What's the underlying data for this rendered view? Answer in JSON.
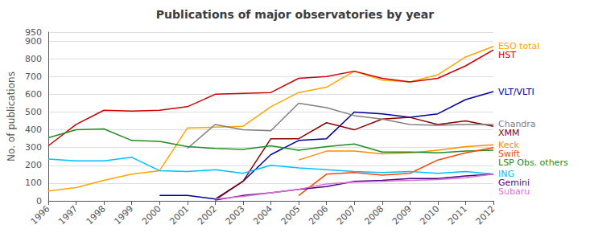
{
  "chart_data": {
    "type": "line",
    "title": "Publications of major observatories by year",
    "ylabel": "No. of publications",
    "categories": [
      "1996",
      "1997",
      "1998",
      "1999",
      "2000",
      "2001",
      "2002",
      "2003",
      "2004",
      "2005",
      "2006",
      "2007",
      "2008",
      "2009",
      "2010",
      "2011",
      "2012"
    ],
    "series": [
      {
        "name": "ESO total",
        "color": "#FFA500",
        "values": [
          55,
          75,
          115,
          150,
          170,
          410,
          415,
          420,
          530,
          610,
          640,
          730,
          680,
          670,
          710,
          810,
          870
        ]
      },
      {
        "name": "HST",
        "color": "#CC0000",
        "values": [
          310,
          430,
          510,
          505,
          510,
          530,
          600,
          605,
          610,
          690,
          700,
          730,
          690,
          670,
          690,
          760,
          850
        ]
      },
      {
        "name": "VLT/VLTI",
        "color": "#000099",
        "values": [
          null,
          null,
          null,
          null,
          30,
          30,
          10,
          110,
          260,
          340,
          350,
          500,
          490,
          470,
          490,
          570,
          615
        ]
      },
      {
        "name": "XMM",
        "color": "#8B0000",
        "values": [
          null,
          null,
          null,
          null,
          null,
          null,
          5,
          110,
          350,
          350,
          440,
          400,
          460,
          470,
          430,
          450,
          420
        ]
      },
      {
        "name": "Chandra",
        "color": "#808080",
        "values": [
          null,
          null,
          null,
          null,
          null,
          295,
          430,
          400,
          395,
          550,
          525,
          480,
          460,
          430,
          425,
          430,
          430
        ]
      },
      {
        "name": "Keck",
        "color": "#FF8C00",
        "values": [
          null,
          null,
          null,
          null,
          null,
          null,
          null,
          null,
          null,
          230,
          280,
          280,
          265,
          270,
          285,
          305,
          315
        ]
      },
      {
        "name": "LSP Obs. others",
        "color": "#228B22",
        "values": [
          355,
          400,
          405,
          340,
          335,
          305,
          295,
          290,
          310,
          285,
          305,
          320,
          275,
          275,
          270,
          280,
          285
        ]
      },
      {
        "name": "Swift",
        "color": "#FF4500",
        "values": [
          null,
          null,
          null,
          null,
          null,
          null,
          null,
          null,
          null,
          30,
          150,
          160,
          145,
          155,
          230,
          270,
          300
        ]
      },
      {
        "name": "ING",
        "color": "#00BFFF",
        "values": [
          235,
          225,
          225,
          245,
          170,
          165,
          175,
          155,
          200,
          185,
          175,
          165,
          160,
          165,
          155,
          165,
          150
        ]
      },
      {
        "name": "Gemini",
        "color": "#4B0082",
        "values": [
          null,
          null,
          null,
          null,
          null,
          null,
          5,
          30,
          45,
          65,
          80,
          110,
          115,
          125,
          125,
          140,
          150
        ]
      },
      {
        "name": "Subaru",
        "color": "#DA70D6",
        "values": [
          null,
          null,
          null,
          null,
          null,
          null,
          10,
          25,
          45,
          65,
          95,
          105,
          110,
          115,
          120,
          130,
          150
        ]
      }
    ],
    "ylim": [
      0,
      950
    ],
    "yticks": [
      0,
      100,
      200,
      300,
      400,
      500,
      600,
      700,
      800,
      900
    ],
    "grid": true
  }
}
